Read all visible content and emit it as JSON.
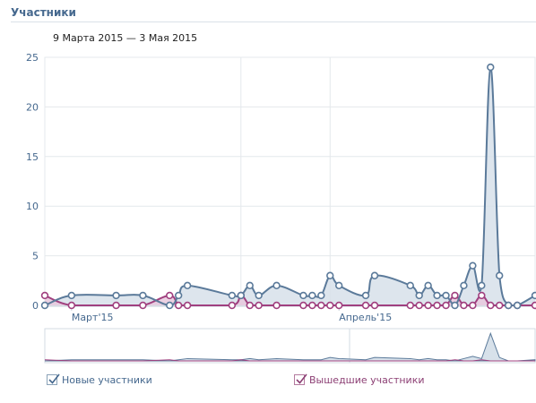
{
  "header": {
    "title": "Участники",
    "date_range": "9 Марта 2015 — 3 Мая 2015"
  },
  "legend": {
    "new_label": "Новые участники",
    "left_label": "Вышедшие участники"
  },
  "colors": {
    "new_line": "#5b7a9a",
    "new_fill": "#d7e1ea",
    "left_line": "#a0407f",
    "left_fill": "#e8c9dd",
    "grid": "#e4e8ec"
  },
  "chart_data": {
    "type": "area",
    "title": "",
    "xlabel": "",
    "ylabel": "",
    "ylim": [
      0,
      25
    ],
    "yticks": [
      0,
      5,
      10,
      15,
      20,
      25
    ],
    "x_start": "2015-03-09",
    "x_end": "2015-05-03",
    "x_tick_labels": [
      {
        "date": "2015-03-12",
        "label": "Март'15"
      },
      {
        "date": "2015-04-11",
        "label": "Апрель'15"
      }
    ],
    "month_boundaries": [
      "2015-03-31",
      "2015-04-10"
    ],
    "x": [
      "2015-03-09",
      "2015-03-12",
      "2015-03-17",
      "2015-03-20",
      "2015-03-23",
      "2015-03-24",
      "2015-03-25",
      "2015-03-30",
      "2015-03-31",
      "2015-04-01",
      "2015-04-02",
      "2015-04-04",
      "2015-04-07",
      "2015-04-08",
      "2015-04-09",
      "2015-04-10",
      "2015-04-11",
      "2015-04-14",
      "2015-04-15",
      "2015-04-19",
      "2015-04-20",
      "2015-04-21",
      "2015-04-22",
      "2015-04-23",
      "2015-04-24",
      "2015-04-25",
      "2015-04-26",
      "2015-04-27",
      "2015-04-28",
      "2015-04-29",
      "2015-04-30",
      "2015-05-01",
      "2015-05-03"
    ],
    "series": [
      {
        "name": "Новые участники",
        "values": [
          0,
          1,
          1,
          1,
          0,
          1,
          2,
          1,
          1,
          2,
          1,
          2,
          1,
          1,
          1,
          3,
          2,
          1,
          3,
          2,
          1,
          2,
          1,
          1,
          0,
          2,
          4,
          2,
          24,
          3,
          0,
          0,
          1
        ]
      },
      {
        "name": "Вышедшие участники",
        "values": [
          1,
          0,
          0,
          0,
          1,
          0,
          0,
          0,
          1,
          0,
          0,
          0,
          0,
          0,
          0,
          0,
          0,
          0,
          0,
          0,
          0,
          0,
          0,
          0,
          1,
          0,
          0,
          1,
          0,
          0,
          0,
          0,
          0
        ]
      }
    ],
    "grid": true,
    "legend_position": "bottom-left"
  }
}
